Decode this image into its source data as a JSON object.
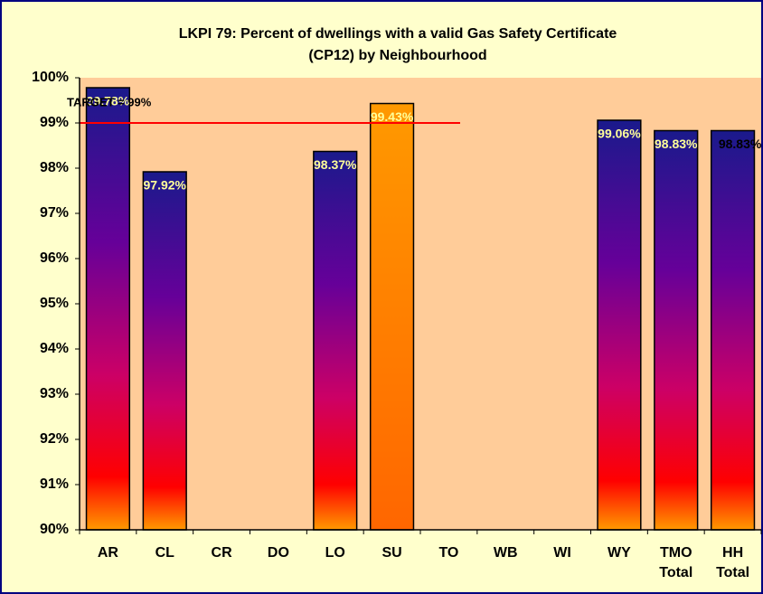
{
  "chart_data": {
    "type": "bar",
    "title": [
      "LKPI 79: Percent of dwellings with a  valid Gas Safety Certificate",
      "(CP12) by Neighbourhood"
    ],
    "categories": [
      "AR",
      "CL",
      "CR",
      "DO",
      "LO",
      "SU",
      "TO",
      "WB",
      "WI",
      "WY",
      "TMO Total",
      "HH Total"
    ],
    "values": [
      99.78,
      97.92,
      null,
      null,
      98.37,
      99.43,
      null,
      null,
      null,
      99.06,
      98.83,
      98.83
    ],
    "value_labels": [
      "99.78%",
      "97.92%",
      null,
      null,
      "98.37%",
      "99.43%",
      null,
      null,
      null,
      "99.06%",
      "98.83%",
      "98.83%"
    ],
    "colors": [
      "#1a1a8c",
      "#1a1a8c",
      null,
      null,
      "#1a1a8c",
      "#ff9900",
      null,
      null,
      null,
      "#1a1a8c",
      "#1a1a8c",
      "#1a1a8c"
    ],
    "ylim": [
      90,
      100
    ],
    "yticks": [
      {
        "value": 90,
        "label": "90%"
      },
      {
        "value": 91,
        "label": "91%"
      },
      {
        "value": 92,
        "label": "92%"
      },
      {
        "value": 93,
        "label": "93%"
      },
      {
        "value": 94,
        "label": "94%"
      },
      {
        "value": 95,
        "label": "95%"
      },
      {
        "value": 96,
        "label": "96%"
      },
      {
        "value": 97,
        "label": "97%"
      },
      {
        "value": 98,
        "label": "98%"
      },
      {
        "value": 99,
        "label": "99%"
      },
      {
        "value": 100,
        "label": "100%"
      }
    ],
    "target": {
      "value": 99,
      "label": "TARGET = 99%",
      "color": "#ff0000"
    },
    "grid": false
  }
}
